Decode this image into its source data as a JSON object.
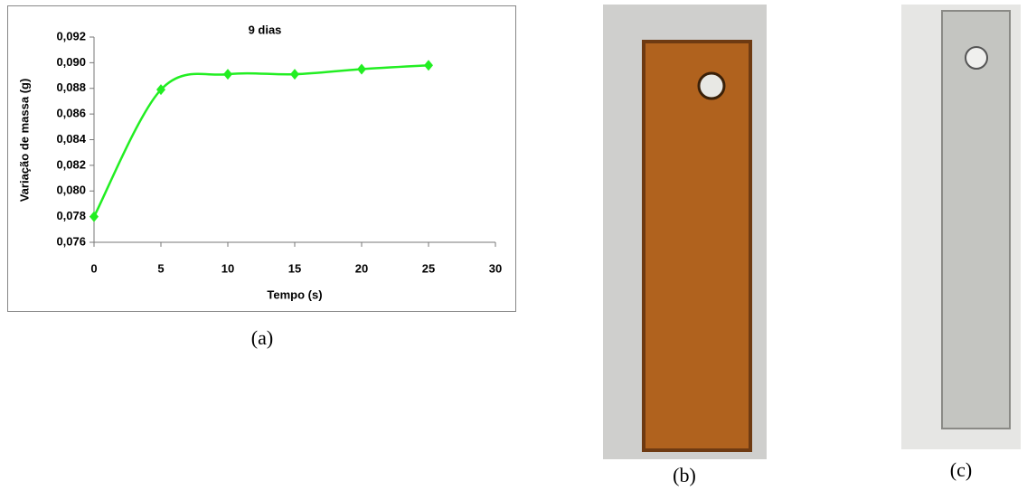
{
  "chart_data": {
    "type": "line",
    "title": "9 dias",
    "x_label": "Tempo (s)",
    "y_label": "Variação de massa (g)",
    "x": [
      0,
      5,
      10,
      15,
      20,
      25
    ],
    "series": [
      {
        "color": "#22ee22",
        "values": [
          0.078,
          0.0879,
          0.0891,
          0.0891,
          0.0895,
          0.0898
        ]
      }
    ],
    "xlim": [
      0,
      30
    ],
    "xticks": [
      0,
      5,
      10,
      15,
      20,
      25,
      30
    ],
    "ylim": [
      0.076,
      0.092
    ],
    "yticks": [
      {
        "value": 0.076,
        "label": "0,076"
      },
      {
        "value": 0.078,
        "label": "0,078"
      },
      {
        "value": 0.08,
        "label": "0,080"
      },
      {
        "value": 0.082,
        "label": "0,082"
      },
      {
        "value": 0.084,
        "label": "0,084"
      },
      {
        "value": 0.086,
        "label": "0,086"
      },
      {
        "value": 0.088,
        "label": "0,088"
      },
      {
        "value": 0.09,
        "label": "0,090"
      },
      {
        "value": 0.092,
        "label": "0,092"
      }
    ],
    "grid": false,
    "smooth": true
  },
  "panels": {
    "a": "(a)",
    "b": "(b)",
    "c": "(c)"
  }
}
